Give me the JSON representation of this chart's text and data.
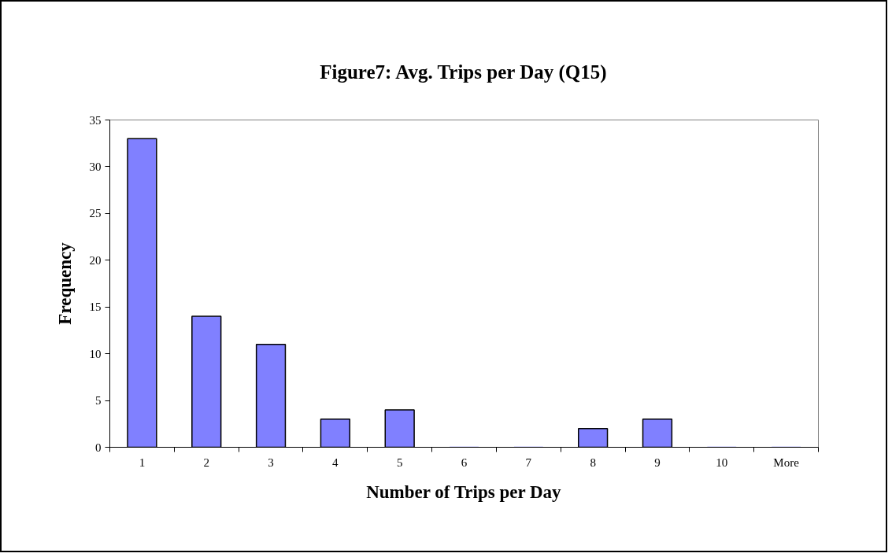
{
  "chart_data": {
    "type": "bar",
    "title": "Figure7: Avg. Trips per Day (Q15)",
    "xlabel": "Number of Trips per Day",
    "ylabel": "Frequency",
    "categories": [
      "1",
      "2",
      "3",
      "4",
      "5",
      "6",
      "7",
      "8",
      "9",
      "10",
      "More"
    ],
    "values": [
      33,
      14,
      11,
      3,
      4,
      0,
      0,
      2,
      3,
      0,
      0
    ],
    "color": "#8080ff",
    "ylim": [
      0,
      35
    ],
    "yticks": [
      0,
      5,
      10,
      15,
      20,
      25,
      30,
      35
    ],
    "grid": false
  }
}
